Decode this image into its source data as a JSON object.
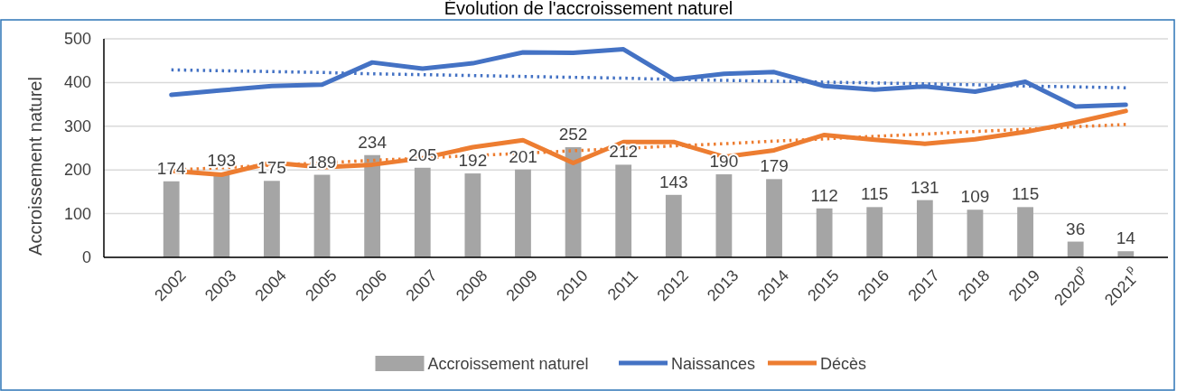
{
  "chart_data": {
    "type": "bar",
    "title": "Évolution de l'accroissement naturel",
    "ylabel": "Accroissement naturel",
    "categories": [
      "2002",
      "2003",
      "2004",
      "2005",
      "2006",
      "2007",
      "2008",
      "2009",
      "2010",
      "2011",
      "2012",
      "2013",
      "2014",
      "2015",
      "2016",
      "2017",
      "2018",
      "2019",
      "2020$^{p}$",
      "2021$^{p}$"
    ],
    "ylim": [
      0,
      500
    ],
    "yticks": [
      0,
      100,
      200,
      300,
      400,
      500
    ],
    "grid": "y",
    "legend": "bottom",
    "series": [
      {
        "name": "Accroissement naturel",
        "color": "#a5a5a5",
        "values": [
          174,
          193,
          175,
          189,
          234,
          205,
          192,
          201,
          252,
          212,
          143,
          190,
          179,
          112,
          115,
          131,
          109,
          115,
          36,
          14
        ],
        "value_labels": [
          "174",
          "193",
          "175",
          "189",
          "234",
          "205",
          "192",
          "201",
          "252",
          "212",
          "143",
          "190",
          "179",
          "112",
          "115",
          "131",
          "109",
          "115",
          "36",
          "14"
        ]
      },
      {
        "name": "Naissances",
        "type": "line",
        "color": "#4472c4",
        "values": [
          372,
          382,
          392,
          395,
          446,
          432,
          444,
          469,
          468,
          476,
          407,
          420,
          424,
          392,
          384,
          391,
          379,
          402,
          345,
          349
        ]
      },
      {
        "name": "Décès",
        "type": "line",
        "color": "#ed7d31",
        "values": [
          198,
          189,
          217,
          206,
          212,
          227,
          252,
          268,
          216,
          264,
          264,
          230,
          245,
          280,
          269,
          260,
          270,
          287,
          309,
          335
        ]
      },
      {
        "type": "line",
        "color": "#4472c4",
        "line_style": "dotted",
        "values": [
          429,
          427,
          425,
          423,
          420,
          418,
          416,
          414,
          412,
          410,
          407,
          405,
          403,
          401,
          399,
          397,
          395,
          392,
          390,
          388
        ]
      },
      {
        "type": "line",
        "color": "#ed7d31",
        "line_style": "dotted",
        "values": [
          200,
          205,
          211,
          216,
          222,
          227,
          233,
          238,
          244,
          249,
          255,
          260,
          266,
          271,
          277,
          282,
          288,
          293,
          299,
          304
        ]
      }
    ]
  }
}
